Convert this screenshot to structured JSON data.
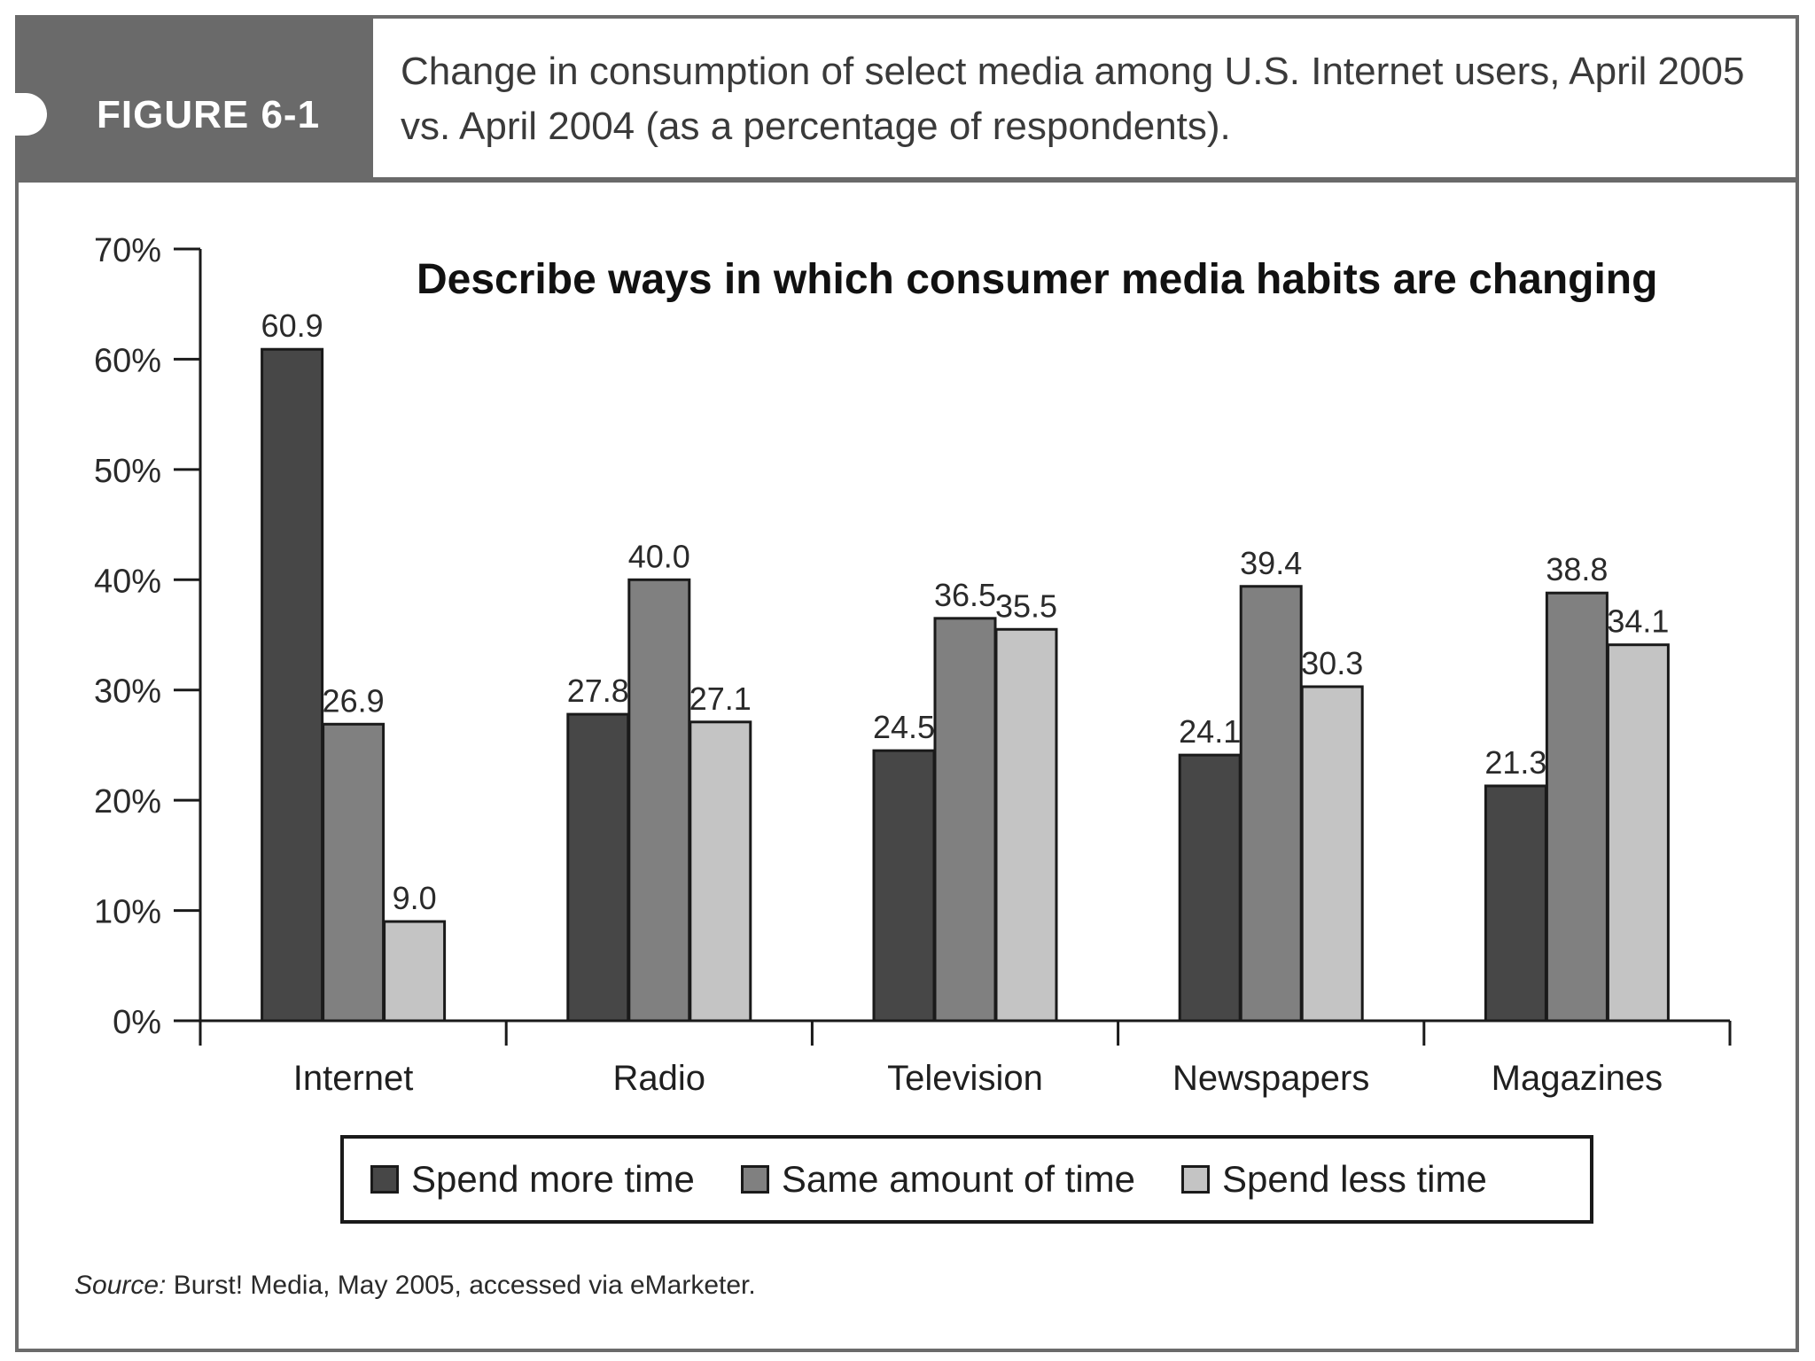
{
  "figure": {
    "label": "FIGURE 6-1",
    "caption": "Change in consumption of select media among U.S. Internet users, April 2005 vs. April 2004 (as a percentage of respondents).",
    "overlay_title": "Describe ways in which consumer media habits are changing",
    "source_prefix": "Source:",
    "source_text": " Burst! Media, May 2005, accessed via eMarketer."
  },
  "chart_data": {
    "type": "bar",
    "title": "Change in consumption of select media among U.S. Internet users, April 2005 vs. April 2004 (as a percentage of respondents).",
    "xlabel": "",
    "ylabel": "",
    "categories": [
      "Internet",
      "Radio",
      "Television",
      "Newspapers",
      "Magazines"
    ],
    "series": [
      {
        "name": "Spend more time",
        "values": [
          60.9,
          27.8,
          24.5,
          24.1,
          21.3
        ],
        "labels": [
          "60.9",
          "27.8",
          "24.5",
          "24.1",
          "21.3"
        ],
        "color": "#474747"
      },
      {
        "name": "Same amount of time",
        "values": [
          26.9,
          40.0,
          36.5,
          39.4,
          38.8
        ],
        "labels": [
          "26.9",
          "40.0",
          "36.5",
          "39.4",
          "38.8"
        ],
        "color": "#808080"
      },
      {
        "name": "Spend less time",
        "values": [
          9.0,
          27.1,
          35.5,
          30.3,
          34.1
        ],
        "labels": [
          "9.0",
          "27.1",
          "35.5",
          "30.3",
          "34.1"
        ],
        "color": "#c4c4c4"
      }
    ],
    "ylim": [
      0,
      70
    ],
    "yticks": [
      0,
      10,
      20,
      30,
      40,
      50,
      60,
      70
    ],
    "ytick_labels": [
      "0%",
      "10%",
      "20%",
      "30%",
      "40%",
      "50%",
      "60%",
      "70%"
    ],
    "grid": false,
    "legend_position": "bottom"
  }
}
